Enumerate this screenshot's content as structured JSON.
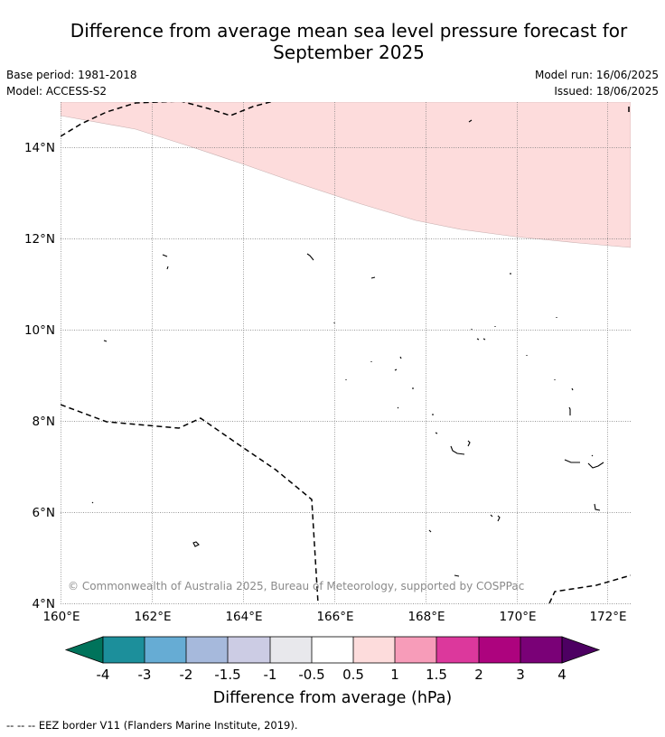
{
  "title_line1": "Difference from average mean sea level pressure forecast for",
  "title_line2": "September 2025",
  "meta_left": {
    "base_period": "Base period: 1981-2018",
    "model": "Model: ACCESS-S2"
  },
  "meta_right": {
    "model_run": "Model run: 16/06/2025",
    "issued": "Issued: 18/06/2025"
  },
  "copyright": "© Commonwealth of Australia 2025, Bureau of Meteorology, supported by COSPPac",
  "map": {
    "lat_labels": [
      "14°N",
      "12°N",
      "10°N",
      "8°N",
      "6°N",
      "4°N"
    ],
    "lon_labels": [
      "160°E",
      "162°E",
      "164°E",
      "166°E",
      "168°E",
      "170°E",
      "172°E"
    ],
    "shaded_region_class": "0.5 to 1 hPa",
    "shaded_color": "#fddcdc"
  },
  "colorbar": {
    "title": "Difference from average (hPa)",
    "labels": [
      "-4",
      "-3",
      "-2",
      "-1.5",
      "-1",
      "-0.5",
      "0.5",
      "1",
      "1.5",
      "2",
      "3",
      "4"
    ],
    "colors": [
      "#00735b",
      "#1c8f9b",
      "#66acd4",
      "#a6b9dc",
      "#cccce4",
      "#e8e8ec",
      "#ffffff",
      "#fddcdc",
      "#f79cb9",
      "#dc389c",
      "#ad037e",
      "#7a0177",
      "#4d0062"
    ]
  },
  "footer": "--  --  -- EEZ border V11 (Flanders Marine Institute, 2019)."
}
